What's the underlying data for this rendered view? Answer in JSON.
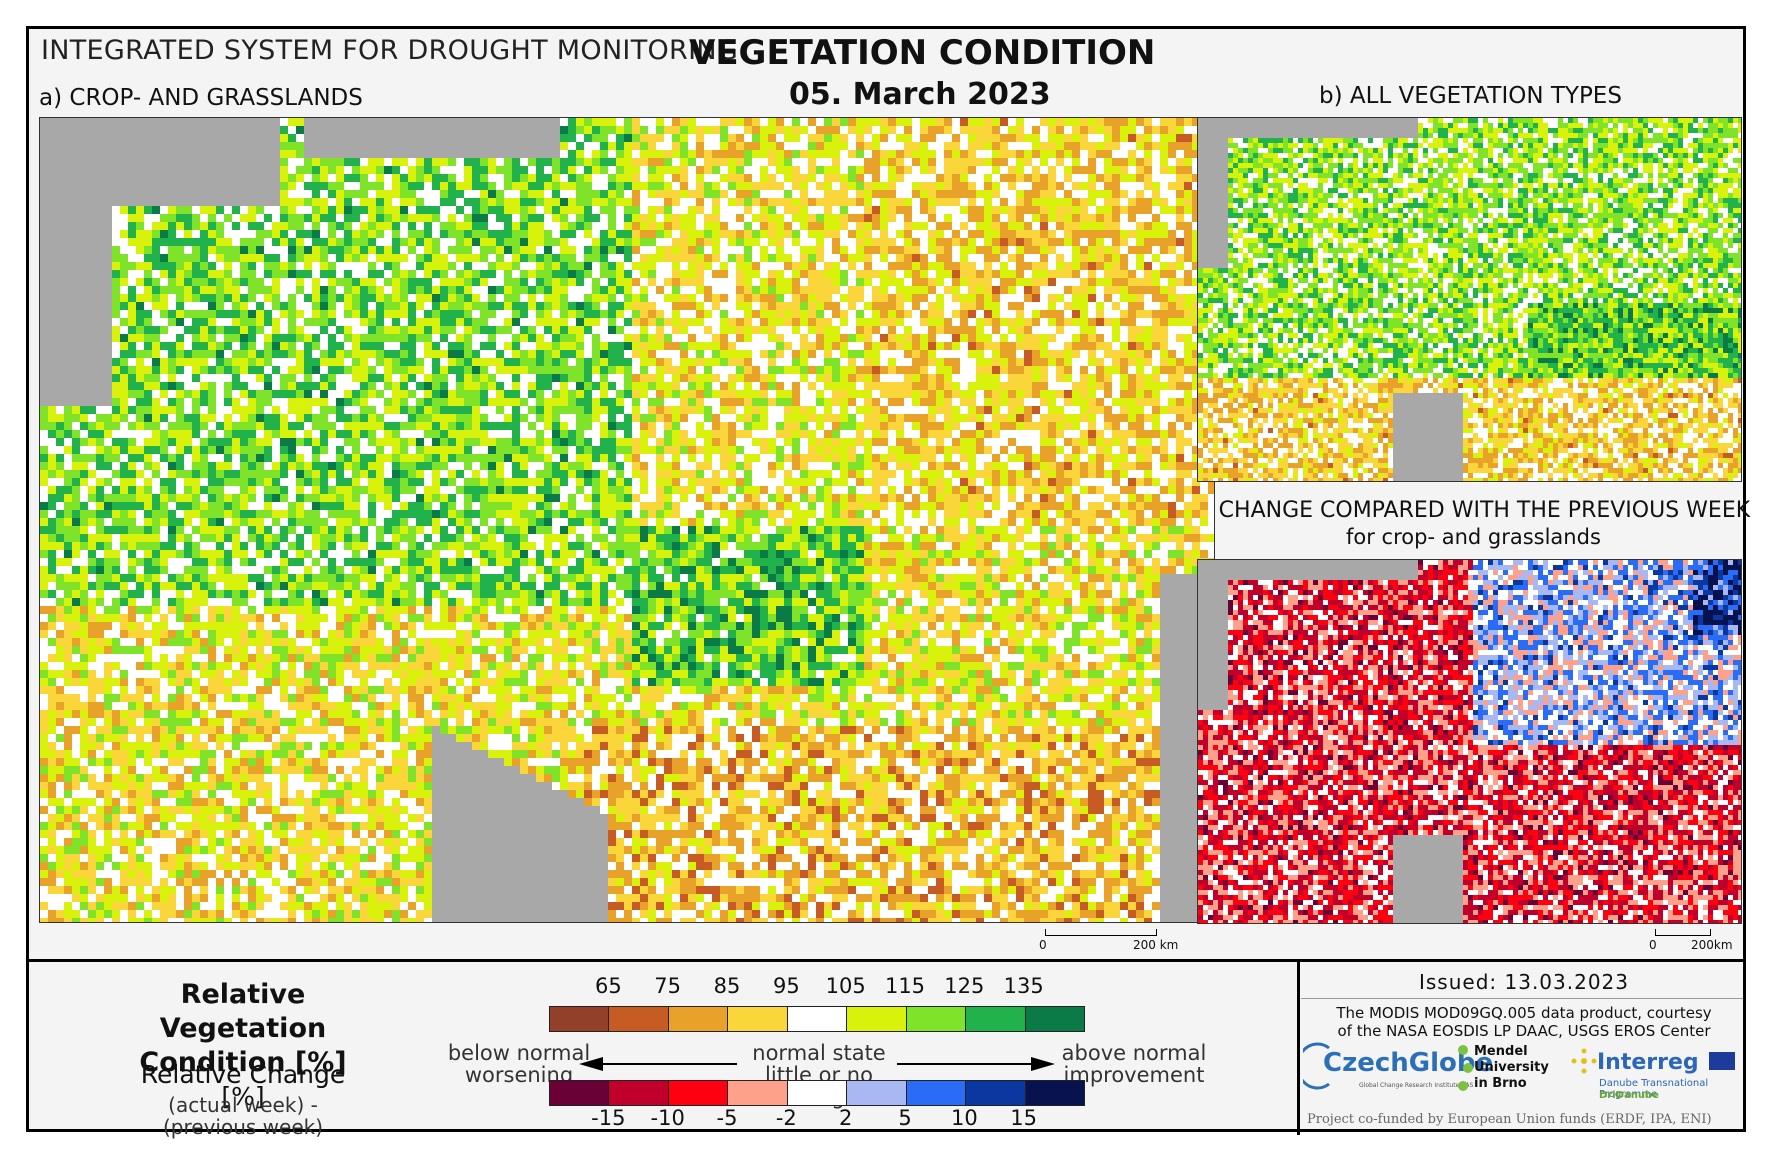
{
  "header": {
    "system": "INTEGRATED SYSTEM FOR DROUGHT MONITORING",
    "title": "VEGETATION CONDITION",
    "date": "05. March 2023"
  },
  "panels": {
    "a": "a) CROP- AND GRASSLANDS",
    "b": "b) ALL VEGETATION TYPES",
    "c": "c) CHANGE COMPARED WITH THE PREVIOUS WEEK",
    "c_sub": "for crop- and grasslands"
  },
  "scales": {
    "a": {
      "zero": "0",
      "end": "200 km"
    },
    "bc": {
      "zero": "0",
      "end": "200km"
    }
  },
  "legend": {
    "rvc_title": "Relative Vegetation Condition [%]",
    "rc_title": "Relative Change [%]",
    "rc_sub": "(actual week) - (previous week)",
    "below1": "below normal",
    "below2": "worsening",
    "normal1": "normal state",
    "normal2": "little or no change",
    "above1": "above normal",
    "above2": "improvement",
    "rvc_ticks": [
      "65",
      "75",
      "85",
      "95",
      "105",
      "115",
      "125",
      "135"
    ],
    "rc_ticks": [
      "-15",
      "-10",
      "-5",
      "-2",
      "2",
      "5",
      "10",
      "15"
    ],
    "rvc_colors": [
      "#93402a",
      "#c75b24",
      "#e8a22a",
      "#fbd63a",
      "#ffffff",
      "#d9f20c",
      "#7fe32a",
      "#22b24c",
      "#0a7a46"
    ],
    "rc_colors": [
      "#6b0036",
      "#c0002a",
      "#ff0010",
      "#ffa08a",
      "#ffffff",
      "#a8b8f2",
      "#2a6cf6",
      "#0a38a0",
      "#07124f"
    ]
  },
  "footer": {
    "issued": "Issued: 13.03.2023",
    "modis_1": "The MODIS MOD09GQ.005 data product, courtesy",
    "modis_2": "of the NASA EOSDIS LP DAAC, USGS EROS Center",
    "czechglobe": "CzechGlobe",
    "czechglobe_sub": "Global Change Research Institute CAS",
    "mendel_1": "Mendel",
    "mendel_2": "University",
    "mendel_3": "in Brno",
    "interreg": "Interreg",
    "interreg_sub": "Danube Transnational Programme",
    "dridanube": "DriDanube",
    "funded": "Project co-funded by European Union funds (ERDF, IPA, ENI)"
  }
}
